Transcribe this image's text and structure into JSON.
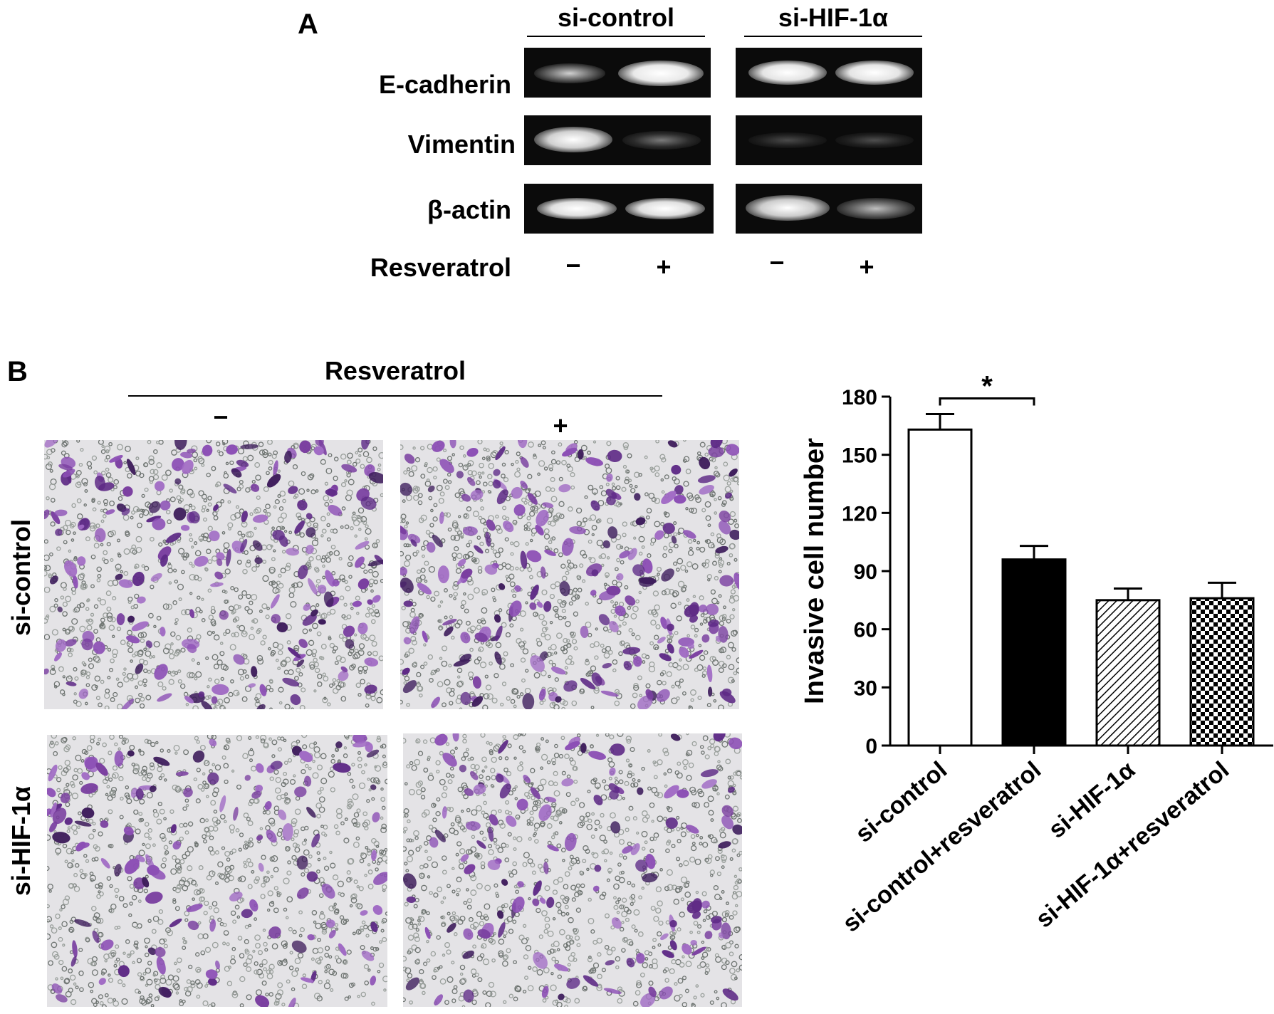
{
  "panelA": {
    "letter": "A",
    "groups": [
      "si-control",
      "si-HIF-1α"
    ],
    "rows": [
      "E-cadherin",
      "Vimentin",
      "β-actin"
    ],
    "treatment_label": "Resveratrol",
    "treatment_signs": [
      "−",
      "+",
      "−",
      "+"
    ]
  },
  "panelB": {
    "letter": "B",
    "treatment_label": "Resveratrol",
    "col_signs": [
      "−",
      "+"
    ],
    "row_labels": [
      "si-control",
      "si-HIF-1α"
    ]
  },
  "chart_data": {
    "type": "bar",
    "categories": [
      "si-control",
      "si-control+resveratrol",
      "si-HIF-1α",
      "si-HIF-1α+resveratrol"
    ],
    "values": [
      163,
      96,
      75,
      76
    ],
    "errors": [
      8,
      7,
      6,
      8
    ],
    "fills": [
      "white",
      "black",
      "hatched",
      "checkered"
    ],
    "ylabel": "Invasive cell number",
    "ylim": [
      0,
      180
    ],
    "yticks": [
      0,
      30,
      60,
      90,
      120,
      150,
      180
    ],
    "significance": {
      "between": [
        0,
        1
      ],
      "label": "*"
    }
  }
}
